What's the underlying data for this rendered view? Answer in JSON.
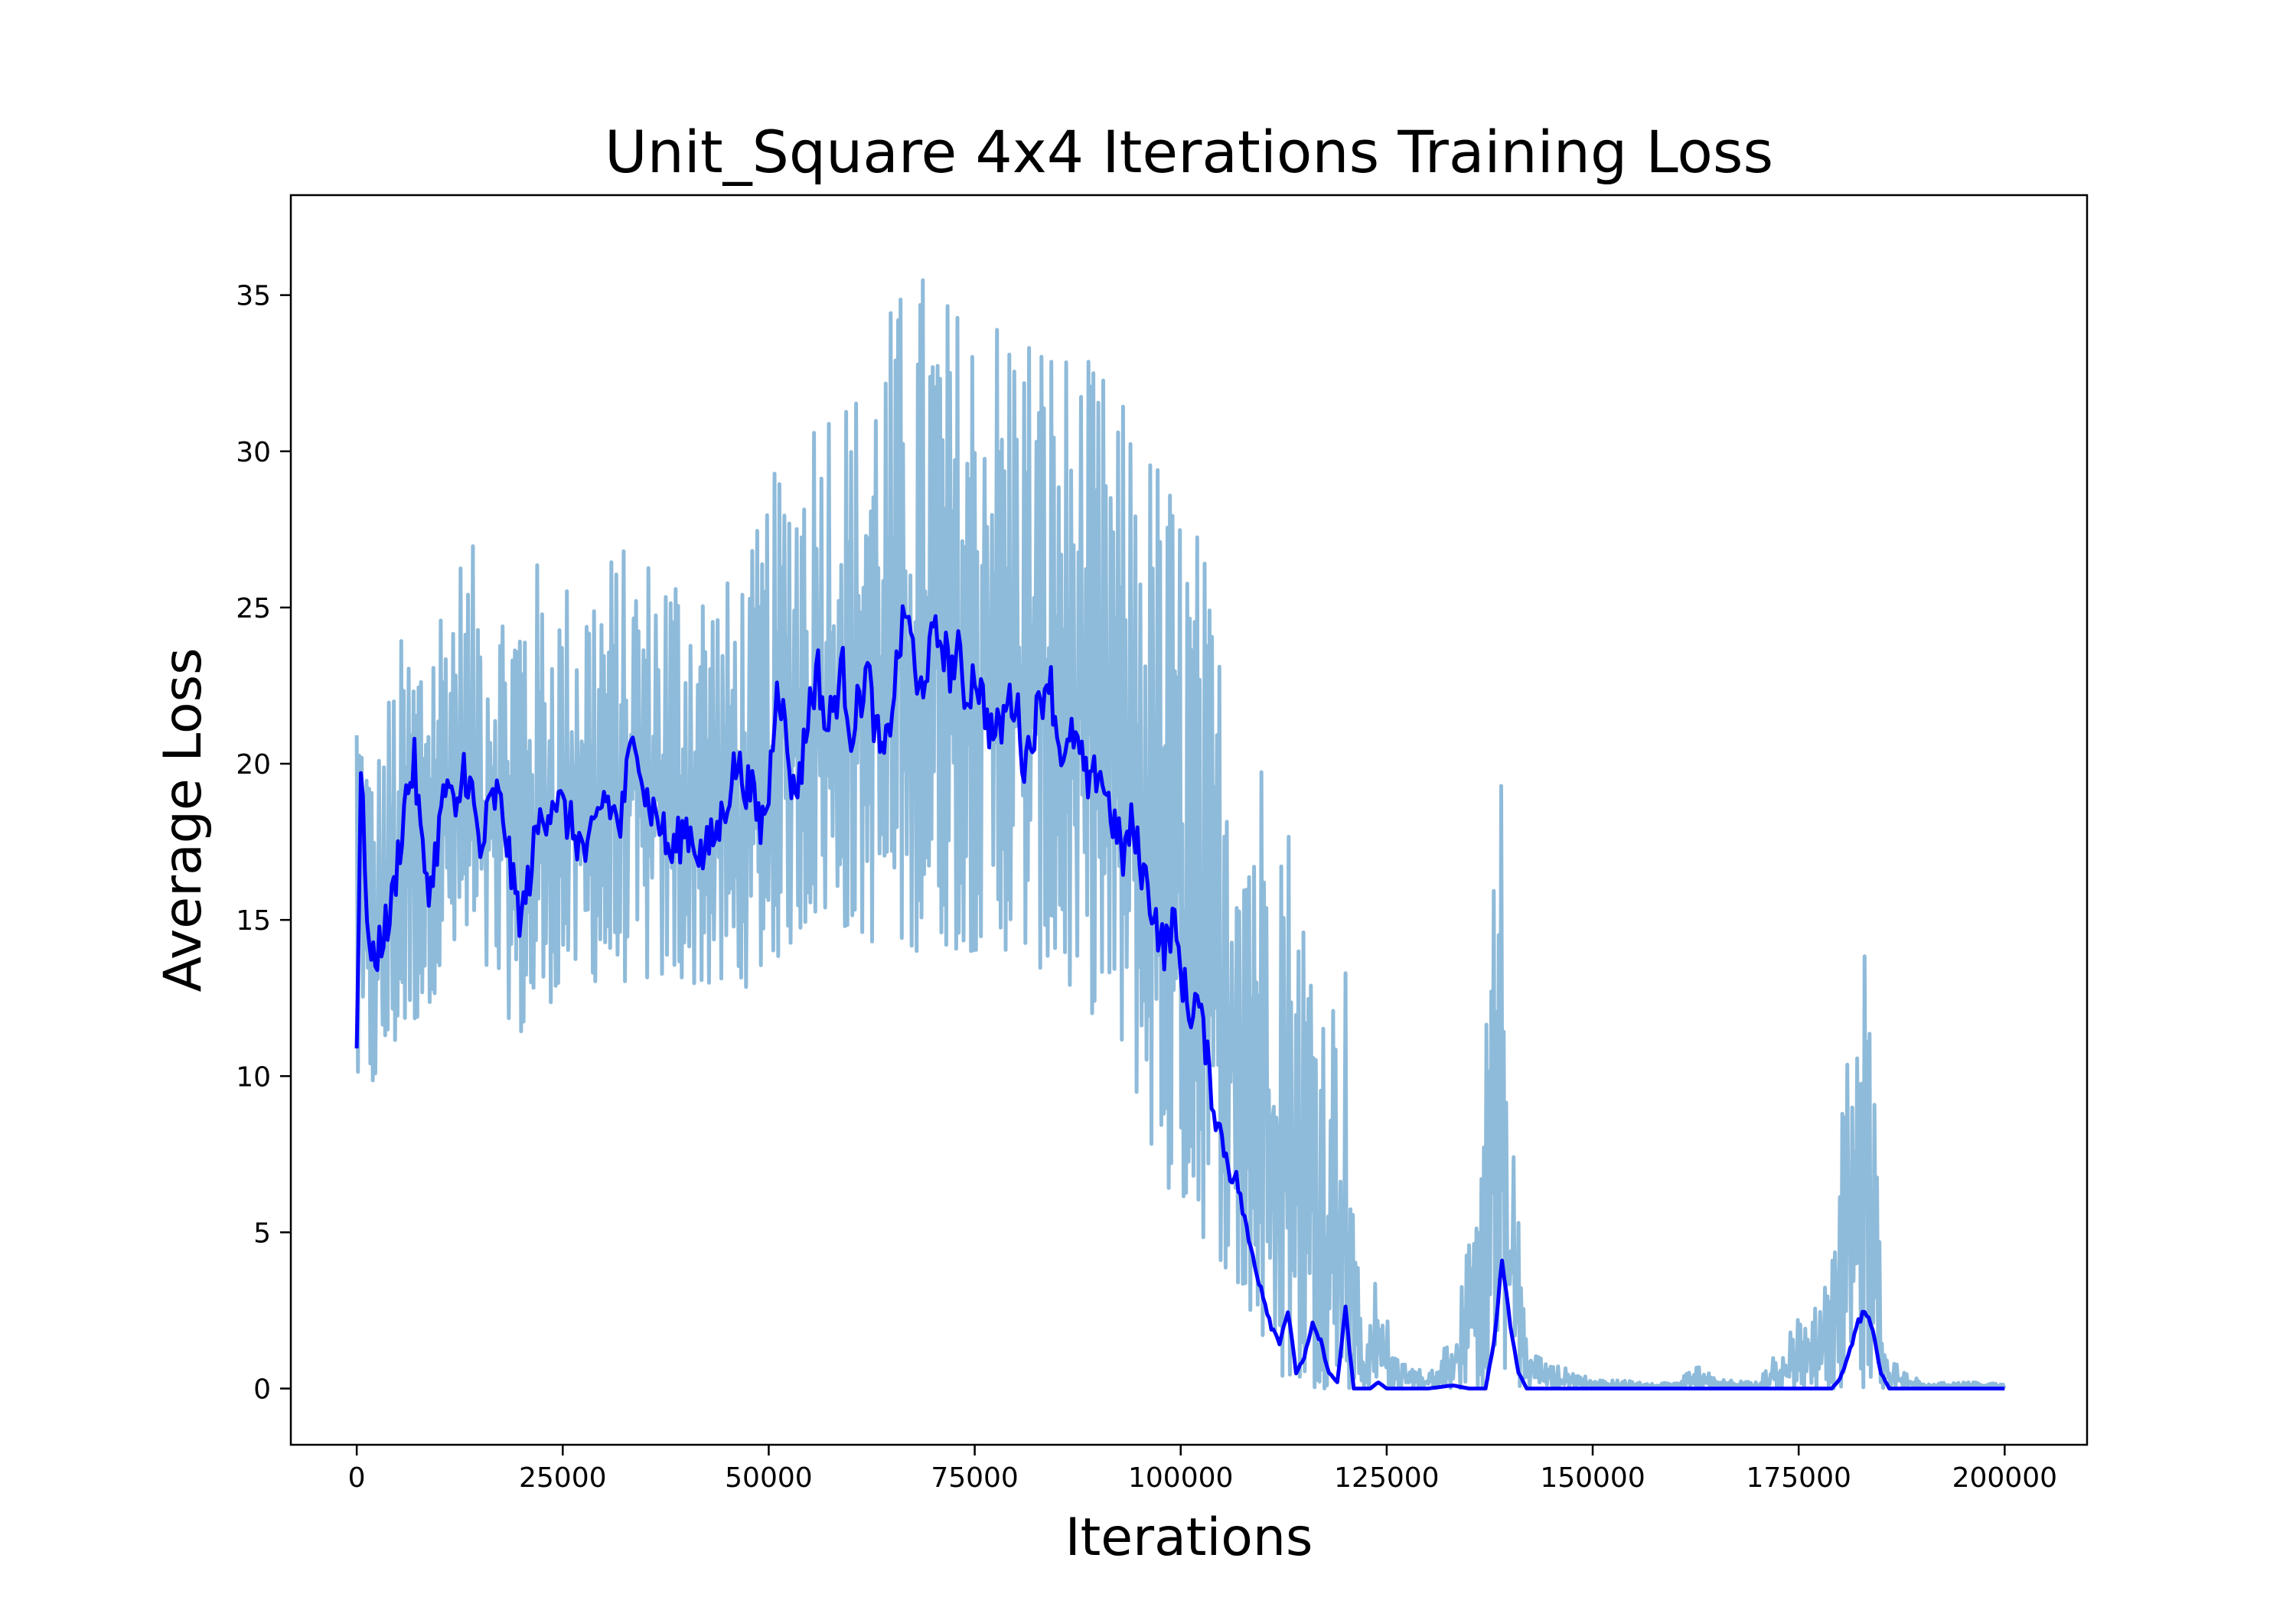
{
  "chart_data": {
    "type": "line",
    "title": "Unit_Square 4x4 Iterations Training Loss",
    "xlabel": "Iterations",
    "ylabel": "Average Loss",
    "xlim": [
      -8000,
      210000
    ],
    "ylim": [
      -1.8,
      38.2
    ],
    "xticks": [
      0,
      25000,
      50000,
      75000,
      100000,
      125000,
      150000,
      175000,
      200000
    ],
    "yticks": [
      0,
      5,
      10,
      15,
      20,
      25,
      30,
      35
    ],
    "grid": false,
    "legend": "none",
    "colors": {
      "raw": "#8fbbda",
      "smoothed": "#0000ff"
    },
    "series": [
      {
        "role": "raw",
        "envelope": {
          "x": [
            0,
            2000,
            5000,
            8000,
            10000,
            12000,
            15000,
            18000,
            20000,
            25000,
            30000,
            35000,
            40000,
            45000,
            48000,
            50000,
            52000,
            55000,
            58000,
            60000,
            65000,
            68000,
            70000,
            72000,
            75000,
            78000,
            80000,
            85000,
            88000,
            90000,
            92000,
            95000,
            98000,
            100000,
            102000,
            105000,
            108000,
            110000,
            112000,
            114000,
            116000,
            118000,
            120000,
            122000,
            124000,
            126000,
            130000,
            133000,
            136000,
            138000,
            139000,
            140000,
            142000,
            144000,
            150000,
            160000,
            163000,
            165000,
            170000,
            179000,
            181000,
            183000,
            184000,
            185000,
            186000,
            190000,
            200000
          ],
          "hi": [
            24,
            20,
            24,
            25,
            26,
            27,
            27,
            26,
            27,
            26,
            27,
            27,
            27,
            26,
            27,
            29,
            30,
            32,
            33,
            32,
            35,
            36,
            36,
            35,
            35,
            35,
            35,
            34,
            33,
            33,
            32,
            31,
            30,
            29,
            28,
            24,
            22,
            21,
            21,
            17,
            15,
            13,
            14,
            1,
            4,
            1,
            0.5,
            2,
            6,
            17,
            20,
            9,
            2,
            1,
            0.3,
            0.2,
            0.8,
            0.3,
            0.2,
            4,
            12,
            15,
            11,
            4,
            1,
            0.2,
            0.2
          ],
          "lo": [
            9,
            9.5,
            11,
            12,
            13,
            13.5,
            13,
            12,
            11,
            13,
            13,
            13,
            13,
            12.5,
            13,
            13.5,
            14,
            15,
            15,
            14.5,
            14,
            14,
            14.5,
            14,
            14,
            14,
            14,
            13,
            12,
            12,
            11,
            9,
            6,
            6,
            5,
            4,
            2,
            1,
            0.3,
            0,
            0,
            0,
            0,
            0,
            0,
            0,
            0,
            0,
            0,
            0,
            0,
            0,
            0,
            0,
            0,
            0,
            0,
            0,
            0,
            0,
            0,
            0,
            0,
            0,
            0,
            0,
            0
          ]
        }
      },
      {
        "role": "smoothed",
        "x": [
          0,
          500,
          1000,
          1500,
          2000,
          3000,
          4000,
          5000,
          6000,
          7000,
          8000,
          9000,
          10000,
          11000,
          12000,
          13000,
          14000,
          15000,
          16000,
          17000,
          18000,
          19000,
          20000,
          22000,
          24000,
          26000,
          28000,
          30000,
          32000,
          33000,
          34000,
          35000,
          37000,
          38000,
          40000,
          42000,
          44000,
          46000,
          48000,
          49000,
          50000,
          51000,
          52000,
          53000,
          54000,
          55000,
          56000,
          57000,
          58000,
          59000,
          60000,
          61000,
          62000,
          63000,
          64000,
          65000,
          66000,
          67000,
          68000,
          69000,
          70000,
          71000,
          72000,
          73000,
          74000,
          75000,
          76000,
          77000,
          78000,
          79000,
          80000,
          81000,
          82000,
          83000,
          84000,
          85000,
          86000,
          87000,
          88000,
          89000,
          90000,
          91000,
          92000,
          93000,
          94000,
          95000,
          96000,
          97000,
          98000,
          99000,
          100000,
          101000,
          102000,
          103000,
          104000,
          105000,
          106000,
          107000,
          108000,
          109000,
          110000,
          111000,
          112000,
          113000,
          114000,
          115000,
          116000,
          117000,
          118000,
          119000,
          120000,
          121000,
          123000,
          124000,
          125000,
          130000,
          133000,
          135000,
          137000,
          138000,
          139000,
          140000,
          141000,
          142000,
          150000,
          160000,
          170000,
          179000,
          180000,
          181000,
          182000,
          183000,
          184000,
          185000,
          186000,
          190000,
          200000
        ],
        "values": [
          11,
          19.5,
          17,
          14,
          13.5,
          14.5,
          15,
          17,
          19,
          20,
          17,
          16,
          18,
          19.5,
          18,
          20,
          19,
          17,
          18.5,
          19,
          18,
          16,
          15,
          18,
          19,
          18,
          17,
          19,
          18,
          20,
          21,
          19,
          18,
          17,
          18,
          17,
          18,
          20,
          19,
          18,
          19,
          23,
          21,
          19,
          20,
          22,
          23,
          21,
          22,
          23,
          21,
          22,
          23,
          21,
          20,
          22,
          24,
          25,
          22,
          23,
          24,
          24,
          23,
          23.5,
          22,
          23,
          22,
          21,
          21,
          22,
          22,
          20,
          21,
          22,
          23,
          21,
          20,
          21,
          20,
          19,
          20,
          19,
          18,
          17,
          18,
          17,
          16,
          15,
          14,
          15,
          13.5,
          12,
          12.5,
          11,
          9,
          8,
          7,
          6.5,
          5,
          4,
          3,
          2,
          1.5,
          2.5,
          0.5,
          1,
          2,
          1.5,
          0.5,
          0.2,
          2.5,
          0,
          0,
          0.2,
          0,
          0,
          0.1,
          0,
          0,
          1.5,
          4,
          2,
          0.5,
          0,
          0,
          0,
          0,
          0,
          0.3,
          1,
          2,
          2.5,
          1.8,
          0.5,
          0,
          0,
          0
        ]
      }
    ]
  }
}
